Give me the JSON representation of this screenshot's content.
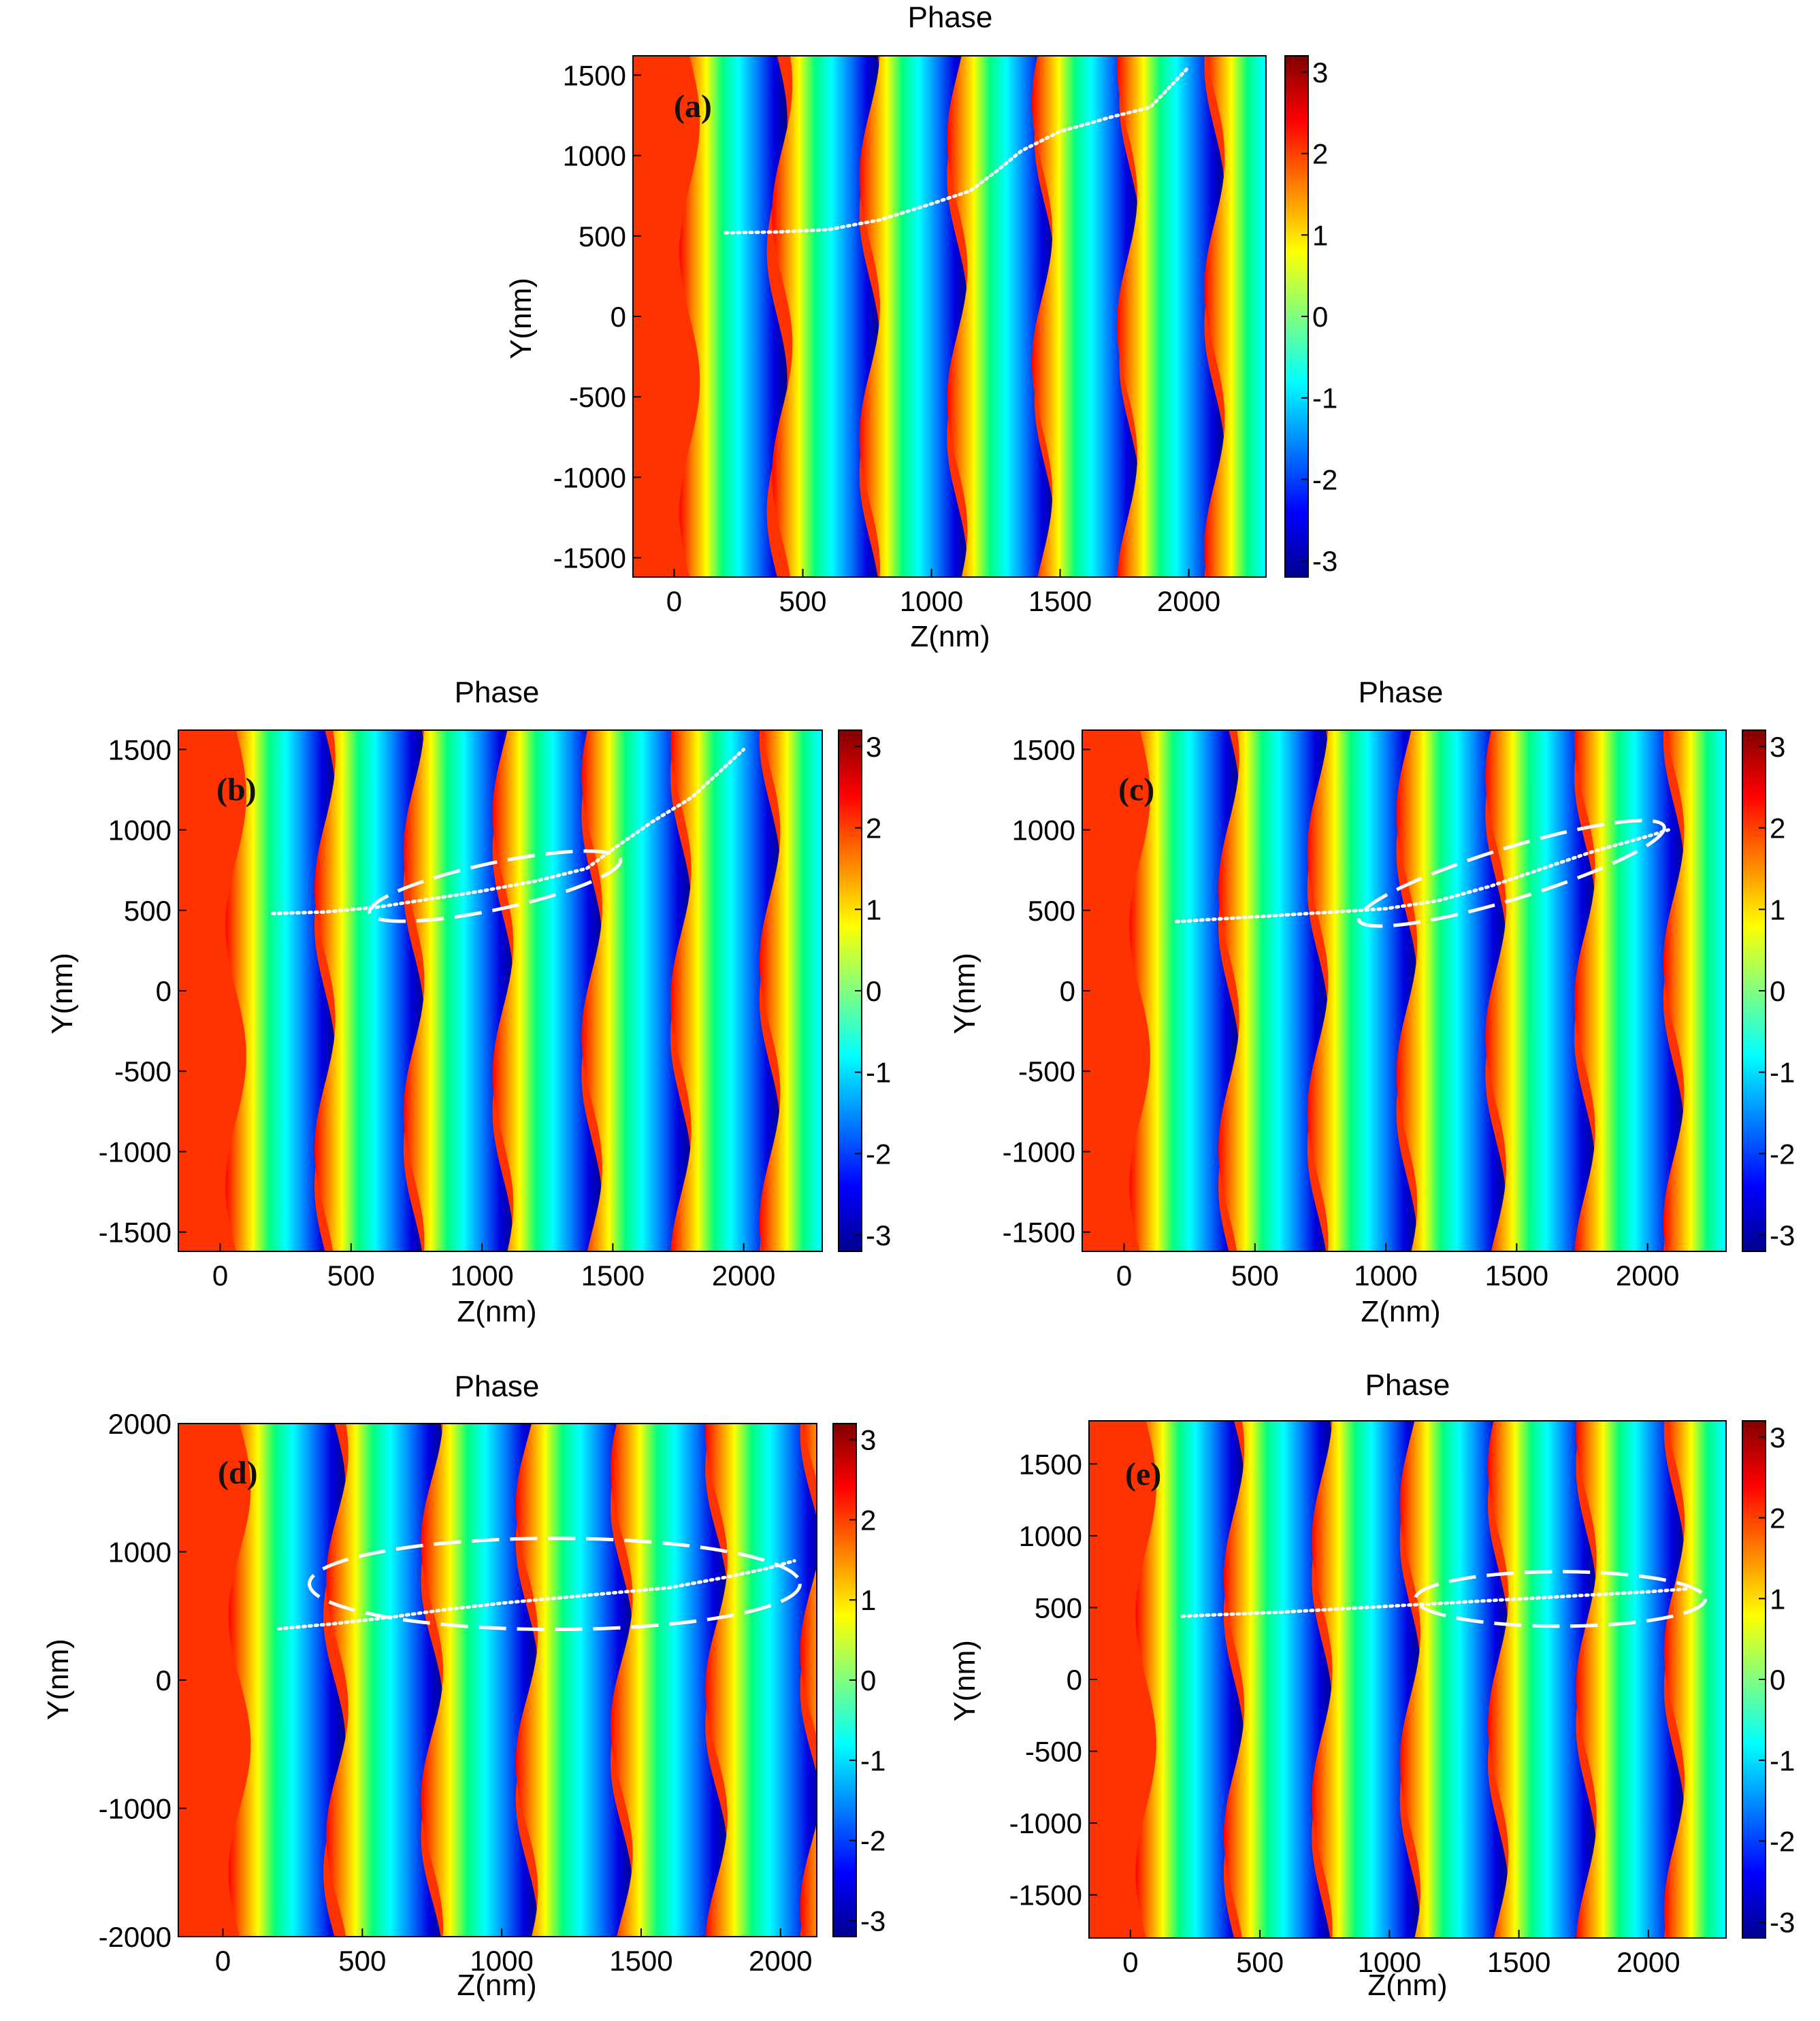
{
  "colors": {
    "colormap": [
      "#00008f",
      "#0000ff",
      "#00ffff",
      "#ffff00",
      "#ff0000",
      "#800000"
    ],
    "trajectory": "#ffffff",
    "axis": "#000000"
  },
  "chart_data": [
    {
      "id": "a",
      "type": "heatmap",
      "title": "Phase",
      "panel_label": "(a)",
      "xlabel": "Z(nm)",
      "ylabel": "Y(nm)",
      "xlim": [
        -160,
        2300
      ],
      "ylim": [
        -1620,
        1620
      ],
      "xticks": [
        0,
        500,
        1000,
        1500,
        2000
      ],
      "yticks": [
        -1500,
        -1000,
        -500,
        0,
        500,
        1000,
        1500
      ],
      "colorbar": {
        "range": [
          -3.2,
          3.2
        ],
        "ticks": [
          -3,
          -2,
          -1,
          0,
          1,
          2,
          3
        ]
      },
      "bands_z_at_y0": [
        60,
        420,
        760,
        1100,
        1430,
        1760,
        2100
      ],
      "ellipse": null,
      "trajectory": [
        [
          200,
          520
        ],
        [
          400,
          525
        ],
        [
          600,
          540
        ],
        [
          800,
          600
        ],
        [
          1000,
          700
        ],
        [
          1150,
          780
        ],
        [
          1250,
          900
        ],
        [
          1350,
          1030
        ],
        [
          1500,
          1150
        ],
        [
          1700,
          1240
        ],
        [
          1850,
          1300
        ],
        [
          2000,
          1550
        ]
      ]
    },
    {
      "id": "b",
      "type": "heatmap",
      "title": "Phase",
      "panel_label": "(b)",
      "xlabel": "Z(nm)",
      "ylabel": "Y(nm)",
      "xlim": [
        -160,
        2300
      ],
      "ylim": [
        -1620,
        1620
      ],
      "xticks": [
        0,
        500,
        1000,
        1500,
        2000
      ],
      "yticks": [
        -1500,
        -1000,
        -500,
        0,
        500,
        1000,
        1500
      ],
      "colorbar": {
        "range": [
          -3.2,
          3.2
        ],
        "ticks": [
          -3,
          -2,
          -1,
          0,
          1,
          2,
          3
        ]
      },
      "bands_z_at_y0": [
        60,
        400,
        740,
        1080,
        1420,
        1760,
        2100
      ],
      "ellipse": {
        "center": [
          1050,
          650
        ],
        "semi_axes": [
          490,
          145
        ],
        "angle_deg": 12
      },
      "trajectory": [
        [
          200,
          480
        ],
        [
          400,
          490
        ],
        [
          600,
          520
        ],
        [
          800,
          570
        ],
        [
          1000,
          620
        ],
        [
          1200,
          680
        ],
        [
          1400,
          760
        ],
        [
          1500,
          880
        ],
        [
          1650,
          1050
        ],
        [
          1800,
          1200
        ],
        [
          2000,
          1500
        ]
      ]
    },
    {
      "id": "c",
      "type": "heatmap",
      "title": "Phase",
      "panel_label": "(c)",
      "xlabel": "Z(nm)",
      "ylabel": "Y(nm)",
      "xlim": [
        -160,
        2300
      ],
      "ylim": [
        -1620,
        1620
      ],
      "xticks": [
        0,
        500,
        1000,
        1500,
        2000
      ],
      "yticks": [
        -1500,
        -1000,
        -500,
        0,
        500,
        1000,
        1500
      ],
      "colorbar": {
        "range": [
          -3.2,
          3.2
        ],
        "ticks": [
          -3,
          -2,
          -1,
          0,
          1,
          2,
          3
        ]
      },
      "bands_z_at_y0": [
        60,
        400,
        740,
        1080,
        1420,
        1760,
        2100
      ],
      "ellipse": {
        "center": [
          1480,
          730
        ],
        "semi_axes": [
          610,
          160
        ],
        "angle_deg": 17
      },
      "trajectory": [
        [
          200,
          430
        ],
        [
          400,
          450
        ],
        [
          600,
          470
        ],
        [
          800,
          490
        ],
        [
          1000,
          510
        ],
        [
          1200,
          560
        ],
        [
          1400,
          650
        ],
        [
          1600,
          760
        ],
        [
          1800,
          870
        ],
        [
          2000,
          960
        ],
        [
          2080,
          1000
        ]
      ]
    },
    {
      "id": "d",
      "type": "heatmap",
      "title": "Phase",
      "panel_label": "(d)",
      "xlabel": "Z(nm)",
      "ylabel": "Y(nm)",
      "xlim": [
        -160,
        2130
      ],
      "ylim": [
        -2000,
        2000
      ],
      "xticks": [
        0,
        500,
        1000,
        1500,
        2000
      ],
      "yticks": [
        -2000,
        -1000,
        0,
        1000,
        2000
      ],
      "colorbar": {
        "range": [
          -3.2,
          3.2
        ],
        "ticks": [
          -3,
          -2,
          -1,
          0,
          1,
          2,
          3
        ]
      },
      "bands_z_at_y0": [
        60,
        410,
        750,
        1090,
        1430,
        1770,
        2110
      ],
      "ellipse": {
        "center": [
          1190,
          750
        ],
        "semi_axes": [
          880,
          355
        ],
        "angle_deg": 0
      },
      "trajectory": [
        [
          200,
          400
        ],
        [
          400,
          440
        ],
        [
          600,
          490
        ],
        [
          800,
          550
        ],
        [
          1000,
          600
        ],
        [
          1200,
          640
        ],
        [
          1400,
          680
        ],
        [
          1600,
          720
        ],
        [
          1800,
          800
        ],
        [
          1950,
          870
        ],
        [
          2050,
          930
        ]
      ]
    },
    {
      "id": "e",
      "type": "heatmap",
      "title": "Phase",
      "panel_label": "(e)",
      "xlabel": "Z(nm)",
      "ylabel": "Y(nm)",
      "xlim": [
        -160,
        2300
      ],
      "ylim": [
        -1800,
        1800
      ],
      "xticks": [
        0,
        500,
        1000,
        1500,
        2000
      ],
      "yticks": [
        -1500,
        -1000,
        -500,
        0,
        500,
        1000,
        1500
      ],
      "colorbar": {
        "range": [
          -3.2,
          3.2
        ],
        "ticks": [
          -3,
          -2,
          -1,
          0,
          1,
          2,
          3
        ]
      },
      "bands_z_at_y0": [
        60,
        400,
        740,
        1080,
        1420,
        1760,
        2100
      ],
      "ellipse": {
        "center": [
          1660,
          560
        ],
        "semi_axes": [
          560,
          190
        ],
        "angle_deg": 0
      },
      "trajectory": [
        [
          200,
          440
        ],
        [
          400,
          455
        ],
        [
          600,
          470
        ],
        [
          800,
          490
        ],
        [
          1000,
          510
        ],
        [
          1200,
          530
        ],
        [
          1400,
          550
        ],
        [
          1600,
          570
        ],
        [
          1800,
          590
        ],
        [
          2000,
          610
        ],
        [
          2150,
          630
        ]
      ]
    }
  ]
}
